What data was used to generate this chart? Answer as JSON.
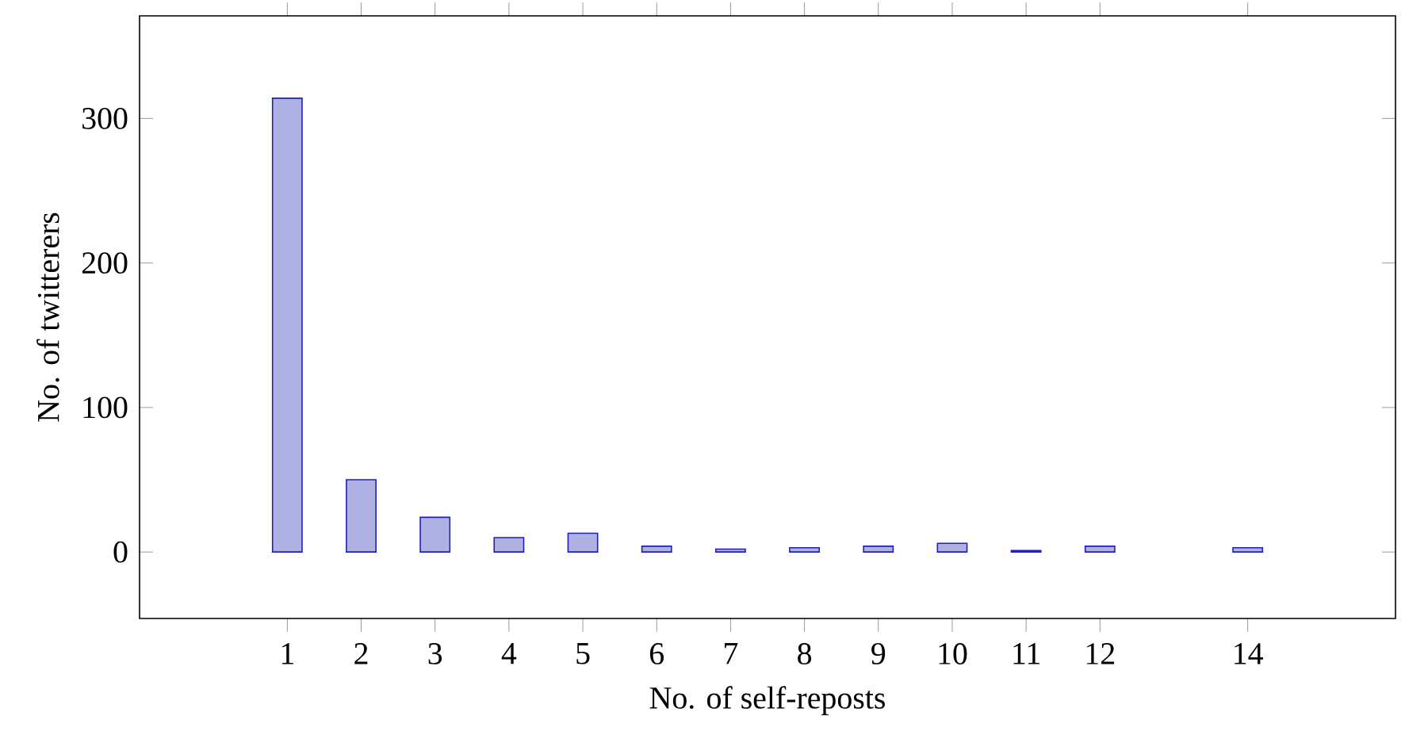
{
  "chart_data": {
    "type": "bar",
    "xlabel": "No. of self-reposts",
    "ylabel": "No. of twitterers",
    "x": [
      1,
      2,
      3,
      4,
      5,
      6,
      7,
      8,
      9,
      10,
      11,
      12,
      14
    ],
    "values": [
      314,
      50,
      24,
      10,
      13,
      4,
      2,
      3,
      4,
      6,
      1,
      4,
      3
    ],
    "color": "#b0b1e3",
    "xlim": [
      -1,
      16
    ],
    "ylim": [
      -46,
      371
    ],
    "xticks": [
      1,
      2,
      3,
      4,
      5,
      6,
      7,
      8,
      9,
      10,
      11,
      12,
      14
    ],
    "yticks": [
      0,
      100,
      200,
      300
    ]
  }
}
